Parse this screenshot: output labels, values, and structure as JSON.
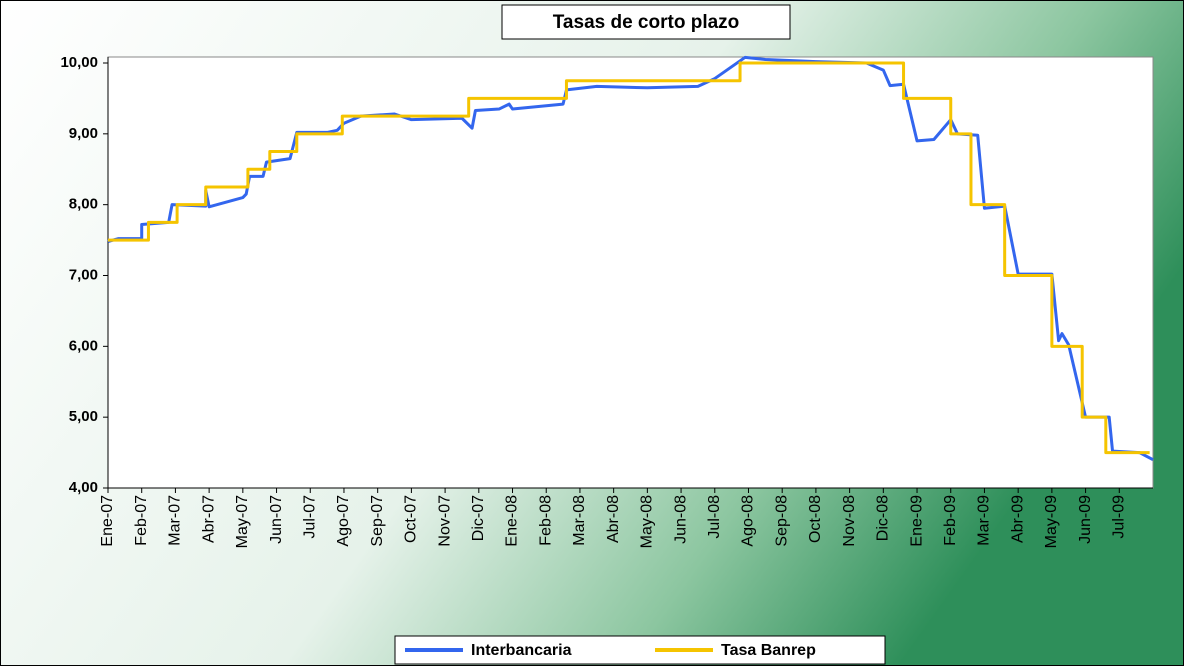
{
  "chart_data": {
    "type": "line",
    "title": "Tasas de corto plazo",
    "categories": [
      "Ene-07",
      "Feb-07",
      "Mar-07",
      "Abr-07",
      "May-07",
      "Jun-07",
      "Jul-07",
      "Ago-07",
      "Sep-07",
      "Oct-07",
      "Nov-07",
      "Dic-07",
      "Ene-08",
      "Feb-08",
      "Mar-08",
      "Abr-08",
      "May-08",
      "Jun-08",
      "Jul-08",
      "Ago-08",
      "Sep-08",
      "Oct-08",
      "Nov-08",
      "Dic-08",
      "Ene-09",
      "Feb-09",
      "Mar-09",
      "Abr-09",
      "May-09",
      "Jun-09",
      "Jul-09"
    ],
    "xlim": [
      0,
      31
    ],
    "ylim": [
      4,
      10
    ],
    "yticks": [
      {
        "value": 4,
        "label": "4,00"
      },
      {
        "value": 5,
        "label": "5,00"
      },
      {
        "value": 6,
        "label": "6,00"
      },
      {
        "value": 7,
        "label": "7,00"
      },
      {
        "value": 8,
        "label": "8,00"
      },
      {
        "value": 9,
        "label": "9,00"
      },
      {
        "value": 10,
        "label": "10,00"
      }
    ],
    "series": [
      {
        "name": "Interbancaria",
        "color": "#3366ee",
        "x": [
          0,
          0.3,
          1.0,
          1.0,
          1.8,
          1.9,
          2.9,
          2.9,
          3.0,
          4.0,
          4.1,
          4.2,
          4.6,
          4.7,
          5.4,
          5.6,
          6.5,
          6.8,
          7.0,
          7.5,
          8.5,
          9.0,
          10.5,
          10.8,
          10.9,
          11.6,
          11.9,
          12.0,
          13.5,
          13.6,
          14.5,
          16.0,
          17.5,
          18.0,
          18.9,
          19.5,
          21,
          22.5,
          23.0,
          23.2,
          23.6,
          24.0,
          24.5,
          25.0,
          25.2,
          25.8,
          26.0,
          26.6,
          27.0,
          28.0,
          28.2,
          28.3,
          28.5,
          29.0,
          29.7,
          29.8,
          30.6,
          31.0
        ],
        "values": [
          7.48,
          7.52,
          7.52,
          7.72,
          7.75,
          8.0,
          7.98,
          8.2,
          7.97,
          8.1,
          8.15,
          8.4,
          8.4,
          8.6,
          8.65,
          9.02,
          9.02,
          9.05,
          9.15,
          9.25,
          9.28,
          9.2,
          9.22,
          9.08,
          9.33,
          9.35,
          9.42,
          9.35,
          9.42,
          9.62,
          9.67,
          9.65,
          9.67,
          9.78,
          10.08,
          10.05,
          10.02,
          10.0,
          9.9,
          9.68,
          9.7,
          8.9,
          8.92,
          9.2,
          9.0,
          8.98,
          7.95,
          7.98,
          7.02,
          7.02,
          6.08,
          6.18,
          6.02,
          5.0,
          5.0,
          4.52,
          4.5,
          4.4
        ]
      },
      {
        "name": "Tasa Banrep",
        "color": "#f5c400",
        "x": [
          0,
          1.2,
          1.2,
          2.05,
          2.05,
          2.9,
          2.9,
          4.15,
          4.15,
          4.8,
          4.8,
          5.6,
          5.6,
          6.95,
          6.95,
          10.7,
          10.7,
          13.6,
          13.6,
          18.75,
          18.75,
          23.6,
          23.6,
          25.0,
          25.0,
          25.6,
          25.6,
          26.6,
          26.6,
          28.0,
          28.0,
          28.9,
          28.9,
          29.6,
          29.6,
          30.9
        ],
        "values": [
          7.5,
          7.5,
          7.75,
          7.75,
          8.0,
          8.0,
          8.25,
          8.25,
          8.5,
          8.5,
          8.75,
          8.75,
          9.0,
          9.0,
          9.25,
          9.25,
          9.5,
          9.5,
          9.75,
          9.75,
          10.0,
          10.0,
          9.5,
          9.5,
          9.0,
          9.0,
          8.0,
          8.0,
          7.0,
          7.0,
          6.0,
          6.0,
          5.0,
          5.0,
          4.5,
          4.5
        ]
      }
    ]
  }
}
